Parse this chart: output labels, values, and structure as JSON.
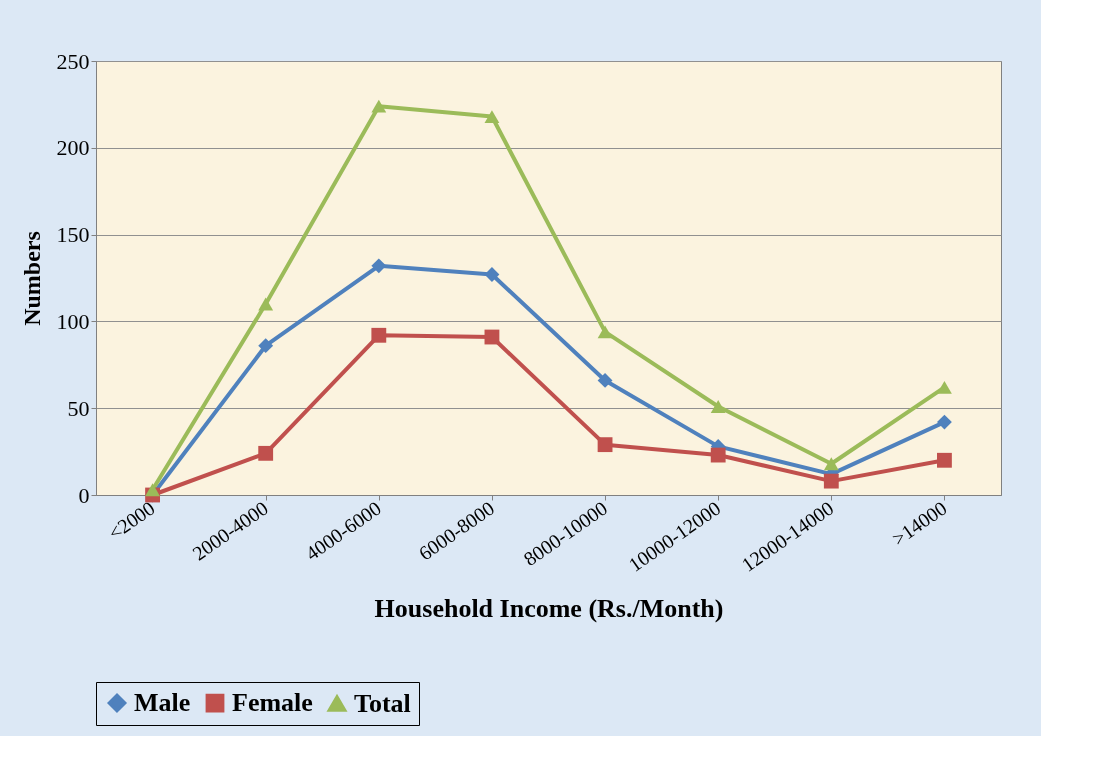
{
  "chart_data": {
    "type": "line",
    "xlabel": "Household Income (Rs./Month)",
    "ylabel": "Numbers",
    "categories": [
      "<2000",
      "2000-4000",
      "4000-6000",
      "6000-8000",
      "8000-10000",
      "10000-12000",
      "12000-14000",
      ">14000"
    ],
    "series": [
      {
        "name": "Male",
        "color": "#4f81bd",
        "marker": "diamond",
        "values": [
          0,
          86,
          132,
          127,
          66,
          28,
          12,
          42
        ]
      },
      {
        "name": "Female",
        "color": "#c0504d",
        "marker": "square",
        "values": [
          0,
          24,
          92,
          91,
          29,
          23,
          8,
          20
        ]
      },
      {
        "name": "Total",
        "color": "#9bbb59",
        "marker": "triangle",
        "values": [
          3,
          110,
          224,
          218,
          94,
          51,
          18,
          62
        ]
      }
    ],
    "ylim": [
      0,
      250
    ],
    "yticks": [
      0,
      50,
      100,
      150,
      200,
      250
    ],
    "grid": "y",
    "legend": "bottom"
  }
}
